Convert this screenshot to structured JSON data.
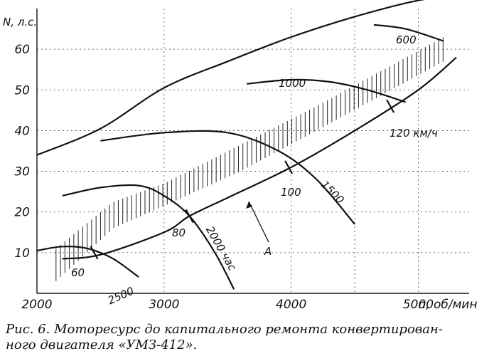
{
  "caption": {
    "line1": "Рис. 6. Моторесурс до капитального ремонта конвертирован-",
    "line2": "ного двигателя «УМЗ-412»."
  },
  "chart_data": {
    "type": "line",
    "xlabel": "n, об/мин",
    "ylabel": "N, л.с.",
    "xlim": [
      2000,
      5400
    ],
    "ylim": [
      0,
      70
    ],
    "grid": true,
    "x_ticks": [
      "2000",
      "3000",
      "4000",
      "5000"
    ],
    "y_ticks": [
      "10",
      "20",
      "30",
      "40",
      "50",
      "60"
    ],
    "full_power_curve": [
      [
        2000,
        34
      ],
      [
        2500,
        40.5
      ],
      [
        3000,
        50.5
      ],
      [
        3500,
        57
      ],
      [
        4000,
        63
      ],
      [
        4500,
        68
      ],
      [
        5000,
        72
      ],
      [
        5300,
        73
      ]
    ],
    "road_load_curve_A": {
      "label": "A",
      "points": [
        [
          2200,
          8.5
        ],
        [
          2500,
          9.5
        ],
        [
          3000,
          15
        ],
        [
          3200,
          19
        ],
        [
          3500,
          23.5
        ],
        [
          4000,
          31
        ],
        [
          4500,
          40
        ],
        [
          5000,
          50
        ],
        [
          5300,
          58
        ]
      ]
    },
    "speed_marks": [
      {
        "label": "60",
        "x": 2450,
        "y": 10
      },
      {
        "label": "80",
        "x": 3200,
        "y": 19
      },
      {
        "label": "100",
        "x": 3980,
        "y": 31
      },
      {
        "label": "120 км/ч",
        "x": 4780,
        "y": 46
      }
    ],
    "series": [
      {
        "name": "2500",
        "points": [
          [
            2000,
            10.5
          ],
          [
            2200,
            11.5
          ],
          [
            2400,
            11
          ],
          [
            2600,
            8.5
          ],
          [
            2800,
            4
          ]
        ]
      },
      {
        "name": "2000 час",
        "points": [
          [
            2200,
            24
          ],
          [
            2500,
            26
          ],
          [
            2800,
            26.5
          ],
          [
            3000,
            24
          ],
          [
            3200,
            19
          ],
          [
            3400,
            10
          ],
          [
            3550,
            1
          ]
        ]
      },
      {
        "name": "1500",
        "points": [
          [
            2500,
            37.5
          ],
          [
            3000,
            39.5
          ],
          [
            3500,
            39.5
          ],
          [
            3900,
            35
          ],
          [
            4200,
            28
          ],
          [
            4500,
            17
          ]
        ]
      },
      {
        "name": "1000",
        "points": [
          [
            3650,
            51.5
          ],
          [
            4000,
            52.5
          ],
          [
            4300,
            52
          ],
          [
            4600,
            50
          ],
          [
            4900,
            47
          ]
        ]
      },
      {
        "name": "600",
        "points": [
          [
            4650,
            66
          ],
          [
            4900,
            65
          ],
          [
            5200,
            62
          ]
        ]
      }
    ],
    "hatch_band": {
      "lower": [
        [
          2150,
          3
        ],
        [
          2600,
          16
        ],
        [
          3000,
          21.5
        ],
        [
          3600,
          30
        ],
        [
          4200,
          40
        ],
        [
          5200,
          57
        ]
      ],
      "upper": [
        [
          2150,
          11
        ],
        [
          2600,
          22.5
        ],
        [
          3000,
          27
        ],
        [
          3600,
          36.5
        ],
        [
          4200,
          46
        ],
        [
          5200,
          63
        ]
      ]
    }
  }
}
